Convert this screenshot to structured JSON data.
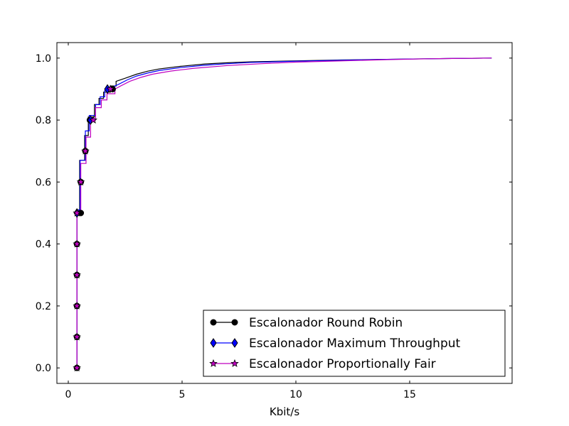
{
  "chart_data": {
    "type": "line",
    "title": "",
    "xlabel": "Kbit/s",
    "ylabel": "",
    "xlim": [
      -0.5,
      19.5
    ],
    "ylim": [
      -0.05,
      1.05
    ],
    "xticks": [
      0,
      5,
      10,
      15
    ],
    "yticks": [
      0.0,
      0.2,
      0.4,
      0.6,
      0.8,
      1.0
    ],
    "xtick_labels": [
      "0",
      "5",
      "10",
      "15"
    ],
    "ytick_labels": [
      "0.0",
      "0.2",
      "0.4",
      "0.6",
      "0.8",
      "1.0"
    ],
    "grid": false,
    "legend_position": "lower-right",
    "series": [
      {
        "name": "Escalonador Round Robin",
        "color": "#000000",
        "marker": "circle",
        "points": [
          [
            0.38,
            0.0
          ],
          [
            0.38,
            0.5
          ],
          [
            0.5,
            0.5
          ],
          [
            0.5,
            0.67
          ],
          [
            0.72,
            0.67
          ],
          [
            0.72,
            0.75
          ],
          [
            0.88,
            0.75
          ],
          [
            0.88,
            0.81
          ],
          [
            1.15,
            0.81
          ],
          [
            1.15,
            0.85
          ],
          [
            1.35,
            0.85
          ],
          [
            1.35,
            0.87
          ],
          [
            1.55,
            0.87
          ],
          [
            1.55,
            0.89
          ],
          [
            1.85,
            0.89
          ],
          [
            1.85,
            0.91
          ],
          [
            2.1,
            0.91
          ],
          [
            2.1,
            0.925
          ],
          [
            2.5,
            0.935
          ],
          [
            3,
            0.948
          ],
          [
            3.5,
            0.958
          ],
          [
            4,
            0.965
          ],
          [
            5,
            0.974
          ],
          [
            6,
            0.981
          ],
          [
            7,
            0.985
          ],
          [
            8,
            0.988
          ],
          [
            10,
            0.991
          ],
          [
            12,
            0.994
          ],
          [
            14,
            0.996
          ],
          [
            16,
            0.998
          ],
          [
            18.6,
            1.0
          ]
        ],
        "markers": [
          [
            0.38,
            0.0
          ],
          [
            0.38,
            0.1
          ],
          [
            0.38,
            0.2
          ],
          [
            0.38,
            0.3
          ],
          [
            0.38,
            0.4
          ],
          [
            0.55,
            0.5
          ],
          [
            0.55,
            0.6
          ],
          [
            0.75,
            0.7
          ],
          [
            0.95,
            0.8
          ],
          [
            1.95,
            0.9
          ]
        ]
      },
      {
        "name": "Escalonador Maximum Throughput",
        "color": "#0000ff",
        "marker": "diamond",
        "points": [
          [
            0.38,
            0.0
          ],
          [
            0.38,
            0.51
          ],
          [
            0.52,
            0.51
          ],
          [
            0.52,
            0.67
          ],
          [
            0.75,
            0.67
          ],
          [
            0.75,
            0.765
          ],
          [
            0.92,
            0.765
          ],
          [
            0.92,
            0.815
          ],
          [
            1.2,
            0.815
          ],
          [
            1.2,
            0.85
          ],
          [
            1.4,
            0.85
          ],
          [
            1.4,
            0.875
          ],
          [
            1.6,
            0.875
          ],
          [
            1.6,
            0.895
          ],
          [
            1.9,
            0.895
          ],
          [
            1.9,
            0.905
          ],
          [
            2.2,
            0.915
          ],
          [
            2.6,
            0.93
          ],
          [
            3,
            0.942
          ],
          [
            3.5,
            0.952
          ],
          [
            4,
            0.96
          ],
          [
            5,
            0.97
          ],
          [
            6,
            0.977
          ],
          [
            7,
            0.982
          ],
          [
            8,
            0.986
          ],
          [
            10,
            0.99
          ],
          [
            12,
            0.993
          ],
          [
            14,
            0.996
          ],
          [
            16,
            0.998
          ],
          [
            18.6,
            1.0
          ]
        ],
        "markers": [
          [
            0.38,
            0.5
          ],
          [
            0.98,
            0.8
          ],
          [
            1.72,
            0.9
          ]
        ]
      },
      {
        "name": "Escalonador Proportionally Fair",
        "color": "#bf00bf",
        "marker": "star",
        "points": [
          [
            0.38,
            0.0
          ],
          [
            0.38,
            0.5
          ],
          [
            0.55,
            0.5
          ],
          [
            0.55,
            0.66
          ],
          [
            0.78,
            0.66
          ],
          [
            0.78,
            0.745
          ],
          [
            0.98,
            0.745
          ],
          [
            0.98,
            0.8
          ],
          [
            1.2,
            0.8
          ],
          [
            1.2,
            0.84
          ],
          [
            1.45,
            0.84
          ],
          [
            1.45,
            0.865
          ],
          [
            1.7,
            0.865
          ],
          [
            1.7,
            0.885
          ],
          [
            2.05,
            0.885
          ],
          [
            2.05,
            0.9
          ],
          [
            2.3,
            0.91
          ],
          [
            2.7,
            0.925
          ],
          [
            3.2,
            0.938
          ],
          [
            3.7,
            0.948
          ],
          [
            4.5,
            0.958
          ],
          [
            5.5,
            0.967
          ],
          [
            7,
            0.976
          ],
          [
            8.5,
            0.982
          ],
          [
            10,
            0.987
          ],
          [
            12,
            0.991
          ],
          [
            14,
            0.995
          ],
          [
            16,
            0.998
          ],
          [
            18.6,
            1.0
          ]
        ],
        "markers": [
          [
            0.38,
            0.0
          ],
          [
            0.38,
            0.1
          ],
          [
            0.38,
            0.2
          ],
          [
            0.38,
            0.3
          ],
          [
            0.38,
            0.4
          ],
          [
            0.38,
            0.5
          ],
          [
            0.55,
            0.6
          ],
          [
            0.75,
            0.7
          ],
          [
            1.1,
            0.8
          ],
          [
            1.85,
            0.9
          ]
        ]
      }
    ]
  }
}
